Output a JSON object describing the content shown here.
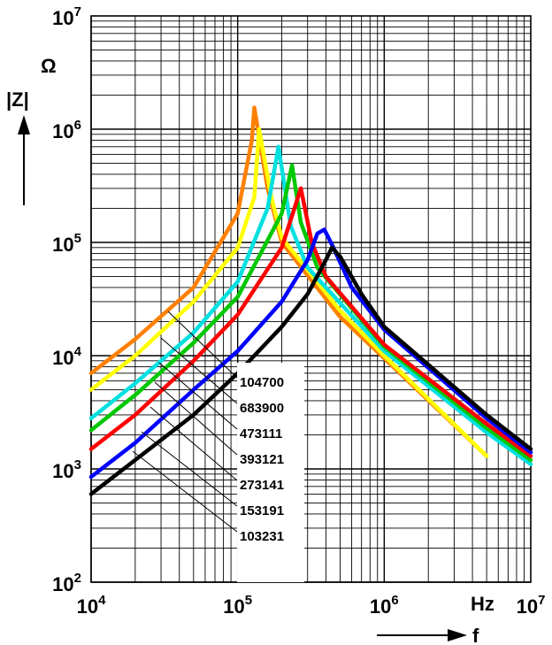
{
  "chart_data": {
    "type": "line",
    "title": "",
    "x_scale": "log",
    "y_scale": "log",
    "xlim": [
      10000,
      10000000
    ],
    "ylim": [
      100,
      10000000
    ],
    "x_ticks": [
      {
        "value": 10000,
        "base": "10",
        "exp": "4"
      },
      {
        "value": 100000,
        "base": "10",
        "exp": "5"
      },
      {
        "value": 1000000,
        "base": "10",
        "exp": "6"
      },
      {
        "value": 10000000,
        "base": "10",
        "exp": "7"
      }
    ],
    "y_ticks": [
      {
        "value": 100,
        "base": "10",
        "exp": "2"
      },
      {
        "value": 1000,
        "base": "10",
        "exp": "3"
      },
      {
        "value": 10000,
        "base": "10",
        "exp": "4"
      },
      {
        "value": 100000,
        "base": "10",
        "exp": "5"
      },
      {
        "value": 1000000,
        "base": "10",
        "exp": "6"
      },
      {
        "value": 10000000,
        "base": "10",
        "exp": "7"
      }
    ],
    "x_unit": "Hz",
    "x_label": "f",
    "y_unit": "Ω",
    "y_label": "|Z|",
    "grid": true,
    "series": [
      {
        "name": "104700",
        "color": "#ff8000",
        "x": [
          10000,
          20000,
          50000,
          100000,
          125000,
          130000,
          160000,
          200000,
          500000,
          1000000,
          5000000
        ],
        "y": [
          7000,
          14000,
          40000,
          180000,
          800000,
          1550000,
          300000,
          100000,
          22000,
          9500,
          1300
        ]
      },
      {
        "name": "683900",
        "color": "#ffff00",
        "x": [
          10000,
          20000,
          50000,
          100000,
          130000,
          140000,
          170000,
          200000,
          500000,
          1000000,
          5000000
        ],
        "y": [
          5000,
          10000,
          30000,
          90000,
          250000,
          1000000,
          250000,
          110000,
          25000,
          10000,
          1300
        ]
      },
      {
        "name": "473111",
        "color": "#00e0e0",
        "x": [
          10000,
          20000,
          50000,
          100000,
          160000,
          190000,
          230000,
          300000,
          1000000,
          5000000,
          10000000
        ],
        "y": [
          2800,
          5700,
          16000,
          45000,
          200000,
          700000,
          140000,
          60000,
          11000,
          2100,
          1100
        ]
      },
      {
        "name": "393121",
        "color": "#00c800",
        "x": [
          10000,
          20000,
          50000,
          100000,
          200000,
          235000,
          270000,
          350000,
          1000000,
          5000000,
          10000000
        ],
        "y": [
          2200,
          4500,
          13000,
          33000,
          180000,
          480000,
          150000,
          60000,
          12000,
          2300,
          1200
        ]
      },
      {
        "name": "273141",
        "color": "#ff0000",
        "x": [
          10000,
          20000,
          50000,
          100000,
          200000,
          270000,
          320000,
          400000,
          1000000,
          5000000,
          10000000
        ],
        "y": [
          1500,
          3000,
          9000,
          23000,
          90000,
          300000,
          100000,
          50000,
          12500,
          2500,
          1300
        ]
      },
      {
        "name": "153191",
        "color": "#0000ff",
        "x": [
          10000,
          20000,
          50000,
          100000,
          200000,
          300000,
          350000,
          390000,
          450000,
          600000,
          1000000,
          5000000,
          10000000
        ],
        "y": [
          850,
          1700,
          5000,
          11000,
          30000,
          70000,
          120000,
          130000,
          90000,
          40000,
          17000,
          2800,
          1400
        ]
      },
      {
        "name": "103231",
        "color": "#000000",
        "x": [
          10000,
          20000,
          50000,
          100000,
          200000,
          300000,
          400000,
          440000,
          500000,
          700000,
          1000000,
          5000000,
          10000000
        ],
        "y": [
          600,
          1200,
          3000,
          7000,
          18000,
          35000,
          70000,
          90000,
          75000,
          35000,
          18000,
          3000,
          1500
        ]
      }
    ]
  }
}
